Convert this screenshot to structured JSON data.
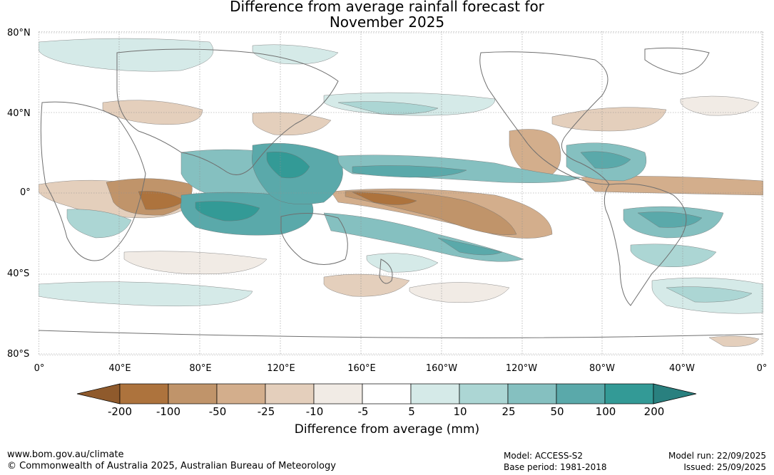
{
  "title_line1": "Difference from average rainfall forecast for",
  "title_line2": "November 2025",
  "lat_labels": [
    "80°N",
    "40°N",
    "0°",
    "40°S",
    "80°S"
  ],
  "lon_labels": [
    "0°",
    "40°E",
    "80°E",
    "120°E",
    "160°E",
    "160°W",
    "120°W",
    "80°W",
    "40°W",
    "0°"
  ],
  "legend": {
    "title": "Difference from average (mm)",
    "ticks": [
      "-200",
      "-100",
      "-50",
      "-25",
      "-10",
      "-5",
      "5",
      "10",
      "25",
      "50",
      "100",
      "200"
    ],
    "colors": [
      "#8f5a2c",
      "#ad733d",
      "#c0946a",
      "#d3ae8c",
      "#e4cfbc",
      "#f1ebe5",
      "#ffffff",
      "#d5eae8",
      "#acd6d4",
      "#85c0c0",
      "#5aa9aa",
      "#339a96",
      "#29807f"
    ]
  },
  "footer": {
    "url": "www.bom.gov.au/climate",
    "copyright": "© Commonwealth of Australia 2025, Australian Bureau of Meteorology",
    "model": "Model: ACCESS-S2",
    "base_period": "Base period: 1981-2018",
    "model_run": "Model run: 22/09/2025",
    "issued": "Issued: 25/09/2025"
  }
}
